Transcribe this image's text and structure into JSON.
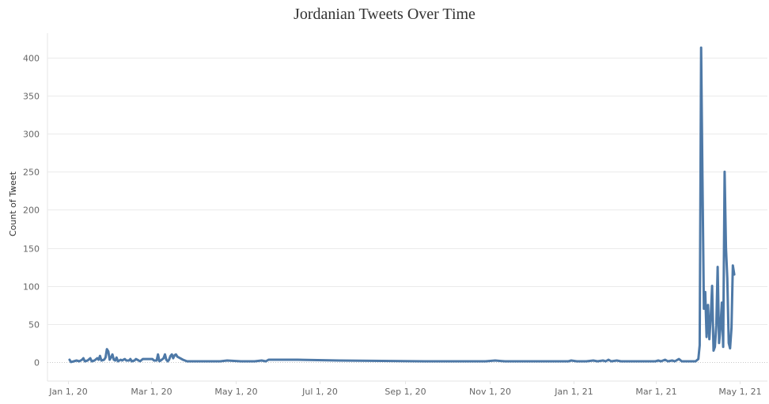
{
  "chart_data": {
    "type": "line",
    "title": "Jordanian Tweets Over Time",
    "xlabel": "",
    "ylabel": "Count of Tweet",
    "x_type": "date",
    "xlim": [
      "2019-12-17",
      "2021-05-21"
    ],
    "ylim": [
      -25,
      432
    ],
    "y_ticks": [
      0,
      50,
      100,
      150,
      200,
      250,
      300,
      350,
      400
    ],
    "x_ticks": [
      {
        "date": "2020-01-01",
        "label": "Jan 1, 20"
      },
      {
        "date": "2020-03-01",
        "label": "Mar 1, 20"
      },
      {
        "date": "2020-05-01",
        "label": "May 1, 20"
      },
      {
        "date": "2020-07-01",
        "label": "Jul 1, 20"
      },
      {
        "date": "2020-09-01",
        "label": "Sep 1, 20"
      },
      {
        "date": "2020-11-01",
        "label": "Nov 1, 20"
      },
      {
        "date": "2021-01-01",
        "label": "Jan 1, 21"
      },
      {
        "date": "2021-03-01",
        "label": "Mar 1, 21"
      },
      {
        "date": "2021-05-01",
        "label": "May 1, 21"
      }
    ],
    "grid": true,
    "legend": "none",
    "series": [
      {
        "color": "#4e79a7",
        "points": [
          [
            "2020-01-02",
            3
          ],
          [
            "2020-01-03",
            0
          ],
          [
            "2020-01-05",
            1
          ],
          [
            "2020-01-07",
            2
          ],
          [
            "2020-01-09",
            1
          ],
          [
            "2020-01-11",
            3
          ],
          [
            "2020-01-12",
            5
          ],
          [
            "2020-01-13",
            1
          ],
          [
            "2020-01-15",
            2
          ],
          [
            "2020-01-17",
            5
          ],
          [
            "2020-01-18",
            1
          ],
          [
            "2020-01-20",
            2
          ],
          [
            "2020-01-22",
            5
          ],
          [
            "2020-01-23",
            3
          ],
          [
            "2020-01-24",
            8
          ],
          [
            "2020-01-25",
            2
          ],
          [
            "2020-01-27",
            3
          ],
          [
            "2020-01-28",
            6
          ],
          [
            "2020-01-29",
            17
          ],
          [
            "2020-01-30",
            14
          ],
          [
            "2020-01-31",
            3
          ],
          [
            "2020-02-01",
            6
          ],
          [
            "2020-02-02",
            10
          ],
          [
            "2020-02-03",
            3
          ],
          [
            "2020-02-04",
            2
          ],
          [
            "2020-02-05",
            6
          ],
          [
            "2020-02-06",
            1
          ],
          [
            "2020-02-08",
            3
          ],
          [
            "2020-02-09",
            2
          ],
          [
            "2020-02-11",
            4
          ],
          [
            "2020-02-12",
            2
          ],
          [
            "2020-02-14",
            2
          ],
          [
            "2020-02-15",
            4
          ],
          [
            "2020-02-16",
            1
          ],
          [
            "2020-02-18",
            2
          ],
          [
            "2020-02-19",
            4
          ],
          [
            "2020-02-21",
            2
          ],
          [
            "2020-02-22",
            1
          ],
          [
            "2020-02-24",
            4
          ],
          [
            "2020-02-26",
            4
          ],
          [
            "2020-02-28",
            4
          ],
          [
            "2020-03-02",
            4
          ],
          [
            "2020-03-03",
            2
          ],
          [
            "2020-03-05",
            2
          ],
          [
            "2020-03-06",
            10
          ],
          [
            "2020-03-07",
            1
          ],
          [
            "2020-03-08",
            2
          ],
          [
            "2020-03-10",
            5
          ],
          [
            "2020-03-11",
            10
          ],
          [
            "2020-03-12",
            3
          ],
          [
            "2020-03-13",
            1
          ],
          [
            "2020-03-14",
            3
          ],
          [
            "2020-03-15",
            8
          ],
          [
            "2020-03-16",
            10
          ],
          [
            "2020-03-17",
            5
          ],
          [
            "2020-03-18",
            9
          ],
          [
            "2020-03-19",
            10
          ],
          [
            "2020-03-20",
            7
          ],
          [
            "2020-03-22",
            5
          ],
          [
            "2020-03-24",
            3
          ],
          [
            "2020-03-27",
            1
          ],
          [
            "2020-04-05",
            1
          ],
          [
            "2020-04-20",
            1
          ],
          [
            "2020-04-25",
            2
          ],
          [
            "2020-05-05",
            1
          ],
          [
            "2020-05-15",
            1
          ],
          [
            "2020-05-20",
            2
          ],
          [
            "2020-05-23",
            1
          ],
          [
            "2020-05-25",
            3
          ],
          [
            "2020-06-15",
            3
          ],
          [
            "2020-07-15",
            2
          ],
          [
            "2020-08-15",
            1.5
          ],
          [
            "2020-09-15",
            1
          ],
          [
            "2020-10-15",
            1
          ],
          [
            "2020-10-29",
            1
          ],
          [
            "2020-11-05",
            2
          ],
          [
            "2020-11-12",
            1
          ],
          [
            "2020-12-01",
            1
          ],
          [
            "2020-12-15",
            1
          ],
          [
            "2020-12-28",
            1
          ],
          [
            "2020-12-30",
            2
          ],
          [
            "2021-01-03",
            1
          ],
          [
            "2021-01-10",
            1
          ],
          [
            "2021-01-15",
            2
          ],
          [
            "2021-01-18",
            1
          ],
          [
            "2021-01-22",
            2
          ],
          [
            "2021-01-24",
            1
          ],
          [
            "2021-01-26",
            3
          ],
          [
            "2021-01-28",
            1
          ],
          [
            "2021-02-01",
            2
          ],
          [
            "2021-02-04",
            1
          ],
          [
            "2021-02-10",
            1
          ],
          [
            "2021-02-20",
            1
          ],
          [
            "2021-03-01",
            1
          ],
          [
            "2021-03-03",
            2
          ],
          [
            "2021-03-05",
            1
          ],
          [
            "2021-03-08",
            3
          ],
          [
            "2021-03-10",
            1
          ],
          [
            "2021-03-13",
            2
          ],
          [
            "2021-03-15",
            1
          ],
          [
            "2021-03-18",
            4
          ],
          [
            "2021-03-20",
            1
          ],
          [
            "2021-03-25",
            1
          ],
          [
            "2021-03-30",
            1
          ],
          [
            "2021-04-01",
            4
          ],
          [
            "2021-04-02",
            22
          ],
          [
            "2021-04-03",
            413
          ],
          [
            "2021-04-04",
            240
          ],
          [
            "2021-04-05",
            70
          ],
          [
            "2021-04-06",
            92
          ],
          [
            "2021-04-07",
            33
          ],
          [
            "2021-04-08",
            75
          ],
          [
            "2021-04-09",
            30
          ],
          [
            "2021-04-10",
            60
          ],
          [
            "2021-04-11",
            100
          ],
          [
            "2021-04-12",
            15
          ],
          [
            "2021-04-13",
            20
          ],
          [
            "2021-04-14",
            48
          ],
          [
            "2021-04-15",
            125
          ],
          [
            "2021-04-16",
            25
          ],
          [
            "2021-04-17",
            45
          ],
          [
            "2021-04-18",
            78
          ],
          [
            "2021-04-19",
            20
          ],
          [
            "2021-04-20",
            250
          ],
          [
            "2021-04-21",
            150
          ],
          [
            "2021-04-22",
            110
          ],
          [
            "2021-04-23",
            25
          ],
          [
            "2021-04-24",
            18
          ],
          [
            "2021-04-25",
            45
          ],
          [
            "2021-04-26",
            127
          ],
          [
            "2021-04-27",
            115
          ]
        ]
      }
    ]
  }
}
